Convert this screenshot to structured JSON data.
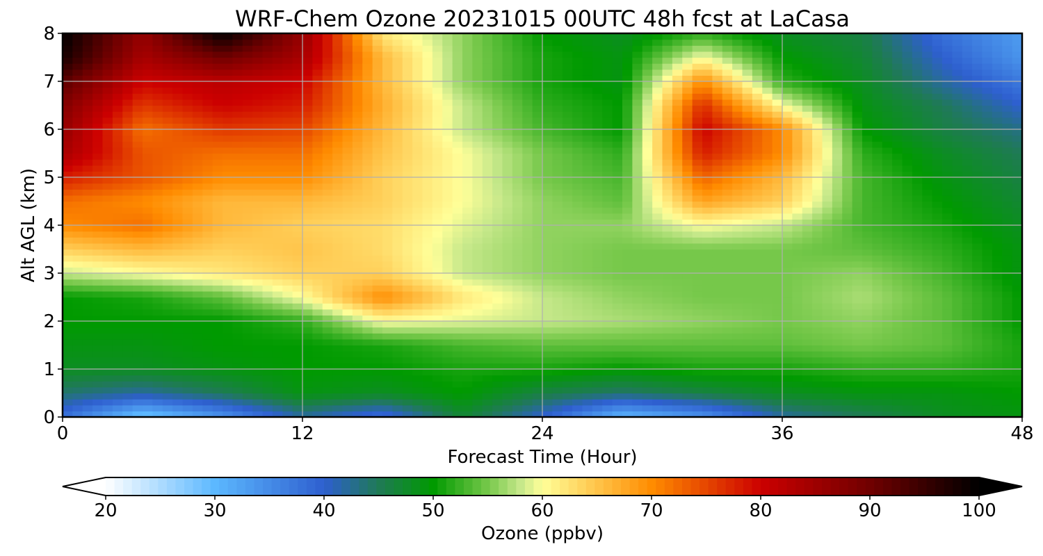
{
  "chart_data": {
    "type": "heatmap",
    "title": "WRF-Chem Ozone  20231015 00UTC 48h fcst at LaCasa",
    "xlabel": "Forecast Time (Hour)",
    "ylabel": "Alt AGL (km)",
    "xlim": [
      0,
      48
    ],
    "ylim": [
      0,
      8
    ],
    "xticks": [
      0,
      12,
      24,
      36,
      48
    ],
    "yticks": [
      0,
      1,
      2,
      3,
      4,
      5,
      6,
      7,
      8
    ],
    "grid": true,
    "x_hours": [
      0,
      4,
      8,
      12,
      16,
      20,
      24,
      28,
      32,
      36,
      40,
      44,
      48
    ],
    "y_km": [
      0,
      0.5,
      1,
      1.5,
      2,
      2.5,
      3,
      3.5,
      4,
      4.5,
      5,
      5.5,
      6,
      6.5,
      7,
      7.5,
      8
    ],
    "ozone_ppbv": [
      [
        38,
        28,
        34,
        42,
        38,
        47,
        40,
        30,
        34,
        42,
        45,
        48,
        49
      ],
      [
        44,
        42,
        45,
        49,
        48,
        50,
        46,
        44,
        46,
        48,
        49,
        49,
        50
      ],
      [
        48,
        48,
        49,
        50,
        50,
        51,
        51,
        50,
        51,
        51,
        52,
        52,
        51
      ],
      [
        49,
        49,
        50,
        50,
        51,
        53,
        54,
        54,
        54,
        54,
        55,
        54,
        51
      ],
      [
        50,
        50,
        50,
        52,
        60,
        59,
        58,
        57,
        56,
        55,
        56,
        54,
        50
      ],
      [
        50,
        51,
        54,
        60,
        70,
        62,
        58,
        56,
        55,
        55,
        57,
        54,
        50
      ],
      [
        58,
        60,
        62,
        64,
        64,
        58,
        56,
        55,
        55,
        55,
        56,
        53,
        49
      ],
      [
        64,
        66,
        64,
        65,
        63,
        58,
        56,
        55,
        55,
        55,
        54,
        52,
        49
      ],
      [
        70,
        72,
        66,
        64,
        63,
        59,
        56,
        56,
        60,
        58,
        53,
        51,
        48
      ],
      [
        72,
        70,
        66,
        66,
        64,
        60,
        56,
        54,
        68,
        64,
        53,
        50,
        47
      ],
      [
        78,
        74,
        70,
        70,
        64,
        60,
        55,
        53,
        73,
        66,
        53,
        49,
        46
      ],
      [
        84,
        74,
        72,
        72,
        65,
        60,
        55,
        52,
        78,
        70,
        52,
        48,
        45
      ],
      [
        86,
        72,
        76,
        75,
        66,
        58,
        53,
        50,
        80,
        70,
        50,
        46,
        43
      ],
      [
        88,
        76,
        80,
        78,
        67,
        58,
        52,
        50,
        77,
        60,
        49,
        45,
        40
      ],
      [
        92,
        80,
        82,
        80,
        66,
        56,
        51,
        49,
        70,
        52,
        48,
        42,
        37
      ],
      [
        98,
        84,
        90,
        84,
        66,
        56,
        51,
        49,
        60,
        50,
        47,
        40,
        34
      ],
      [
        100,
        86,
        100,
        86,
        62,
        56,
        50,
        48,
        52,
        48,
        46,
        38,
        33
      ]
    ],
    "colorbar": {
      "label": "Ozone  (ppbv)",
      "min": 20,
      "max": 100,
      "ticks": [
        20,
        30,
        40,
        50,
        60,
        70,
        80,
        90,
        100
      ],
      "extend": "both",
      "color_stops": [
        {
          "v": 20,
          "c": "#ffffff"
        },
        {
          "v": 30,
          "c": "#5cb8ff"
        },
        {
          "v": 40,
          "c": "#2e5fcf"
        },
        {
          "v": 45,
          "c": "#1f7a55"
        },
        {
          "v": 50,
          "c": "#009a00"
        },
        {
          "v": 55,
          "c": "#76c84a"
        },
        {
          "v": 58,
          "c": "#c6e88a"
        },
        {
          "v": 60,
          "c": "#ffff99"
        },
        {
          "v": 65,
          "c": "#ffc44a"
        },
        {
          "v": 70,
          "c": "#ff8c00"
        },
        {
          "v": 80,
          "c": "#cc0000"
        },
        {
          "v": 90,
          "c": "#700000"
        },
        {
          "v": 100,
          "c": "#000000"
        }
      ]
    }
  }
}
